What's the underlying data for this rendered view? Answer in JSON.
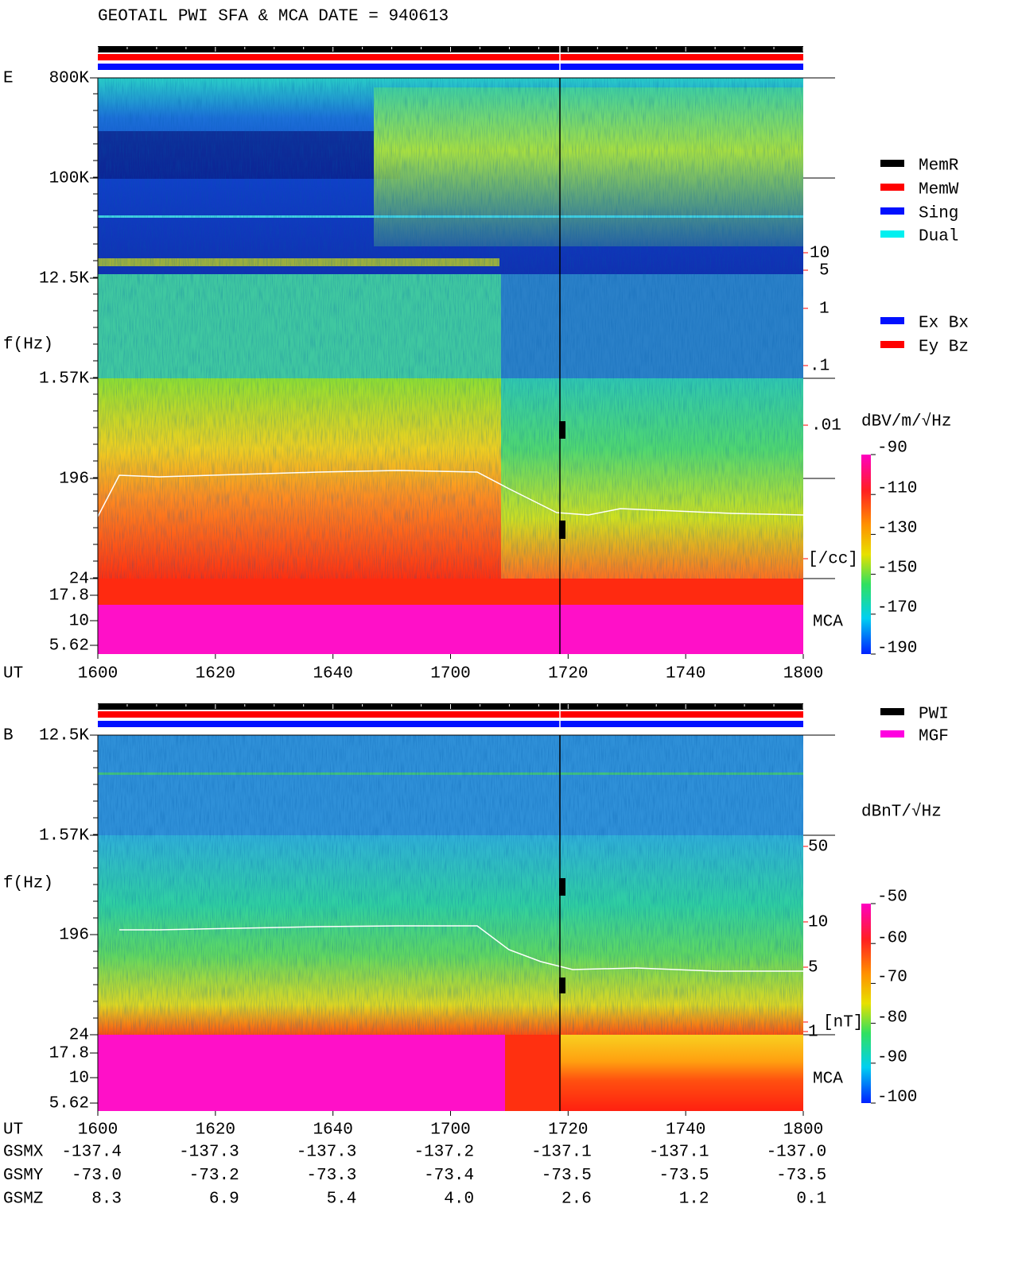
{
  "title": "GEOTAIL  PWI SFA & MCA   DATE = 940613",
  "panels": [
    {
      "label": "E",
      "ylabel": "f(Hz)",
      "xlabel": "UT",
      "yticks": [
        "800K",
        "100K",
        "12.5K",
        "1.57K",
        "196",
        "24",
        "17.8",
        "10",
        "5.62"
      ],
      "right_labels": [
        "10",
        "5",
        "1",
        ".1",
        ".01",
        "[/cc]"
      ],
      "mca": "MCA",
      "xticks": [
        "1600",
        "1620",
        "1640",
        "1700",
        "1720",
        "1740",
        "1800"
      ],
      "legend_a": [
        {
          "name": "MemR",
          "color": "#000000"
        },
        {
          "name": "MemW",
          "color": "#ff0000"
        },
        {
          "name": "Sing",
          "color": "#0010ff"
        },
        {
          "name": "Dual",
          "color": "#00f0f0"
        }
      ],
      "legend_b": [
        {
          "name": "Ex Bx",
          "color": "#0010ff"
        },
        {
          "name": "Ey Bz",
          "color": "#ff0000"
        }
      ],
      "colorbar": {
        "title": "dBV/m/√Hz",
        "ticks": [
          "-90",
          "-110",
          "-130",
          "-150",
          "-170",
          "-190"
        ]
      }
    },
    {
      "label": "B",
      "ylabel": "f(Hz)",
      "xlabel": "UT",
      "yticks": [
        "12.5K",
        "1.57K",
        "196",
        "24",
        "17.8",
        "10",
        "5.62"
      ],
      "right_labels": [
        "50",
        "10",
        "5",
        "1",
        "[nT]"
      ],
      "mca": "MCA",
      "xticks": [
        "1600",
        "1620",
        "1640",
        "1700",
        "1720",
        "1740",
        "1800"
      ],
      "legend_a": [
        {
          "name": "PWI",
          "color": "#000000"
        },
        {
          "name": "MGF",
          "color": "#ff00e0"
        }
      ],
      "legend_b": [],
      "colorbar": {
        "title": "dBnT/√Hz",
        "ticks": [
          "-50",
          "-60",
          "-70",
          "-80",
          "-90",
          "-100"
        ]
      }
    }
  ],
  "ephemeris": {
    "rows": [
      {
        "label": "GSMX",
        "values": [
          "-137.4",
          "-137.3",
          "-137.3",
          "-137.2",
          "-137.1",
          "-137.1",
          "-137.0"
        ]
      },
      {
        "label": "GSMY",
        "values": [
          "-73.0",
          "-73.2",
          "-73.3",
          "-73.4",
          "-73.5",
          "-73.5",
          "-73.5"
        ]
      },
      {
        "label": "GSMZ",
        "values": [
          "8.3",
          "6.9",
          "5.4",
          "4.0",
          "2.6",
          "1.2",
          "0.1"
        ]
      }
    ]
  }
}
